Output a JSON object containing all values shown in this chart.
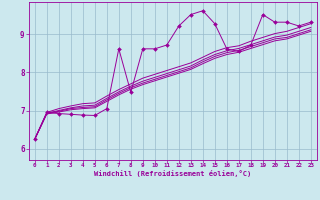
{
  "title": "",
  "xlabel": "Windchill (Refroidissement éolien,°C)",
  "ylabel": "",
  "background_color": "#cce8ee",
  "plot_bg_color": "#cce8ee",
  "grid_color": "#99bbcc",
  "line_color": "#990099",
  "xlim": [
    -0.5,
    23.5
  ],
  "ylim": [
    5.7,
    9.85
  ],
  "yticks": [
    6,
    7,
    8,
    9
  ],
  "xticks": [
    0,
    1,
    2,
    3,
    4,
    5,
    6,
    7,
    8,
    9,
    10,
    11,
    12,
    13,
    14,
    15,
    16,
    17,
    18,
    19,
    20,
    21,
    22,
    23
  ],
  "series": [
    [
      6.25,
      6.95,
      6.92,
      6.9,
      6.88,
      6.87,
      7.05,
      8.62,
      7.48,
      8.62,
      8.62,
      8.72,
      9.22,
      9.52,
      9.62,
      9.28,
      8.62,
      8.55,
      8.72,
      9.52,
      9.32,
      9.32,
      9.22,
      9.32
    ],
    [
      6.25,
      6.95,
      7.05,
      7.12,
      7.18,
      7.2,
      7.38,
      7.55,
      7.7,
      7.85,
      7.95,
      8.05,
      8.15,
      8.25,
      8.4,
      8.55,
      8.65,
      8.7,
      8.82,
      8.92,
      9.02,
      9.08,
      9.18,
      9.28
    ],
    [
      6.25,
      6.92,
      6.98,
      7.05,
      7.08,
      7.1,
      7.28,
      7.45,
      7.6,
      7.72,
      7.82,
      7.92,
      8.02,
      8.12,
      8.28,
      8.42,
      8.52,
      8.58,
      8.68,
      8.78,
      8.88,
      8.92,
      9.02,
      9.12
    ],
    [
      6.25,
      6.93,
      7.0,
      7.07,
      7.12,
      7.14,
      7.32,
      7.49,
      7.64,
      7.77,
      7.87,
      7.97,
      8.07,
      8.17,
      8.33,
      8.47,
      8.57,
      8.63,
      8.73,
      8.83,
      8.93,
      8.98,
      9.08,
      9.18
    ],
    [
      6.25,
      6.91,
      6.96,
      7.02,
      7.05,
      7.07,
      7.24,
      7.41,
      7.56,
      7.68,
      7.78,
      7.88,
      7.98,
      8.08,
      8.23,
      8.37,
      8.47,
      8.53,
      8.63,
      8.73,
      8.83,
      8.88,
      8.98,
      9.08
    ]
  ]
}
